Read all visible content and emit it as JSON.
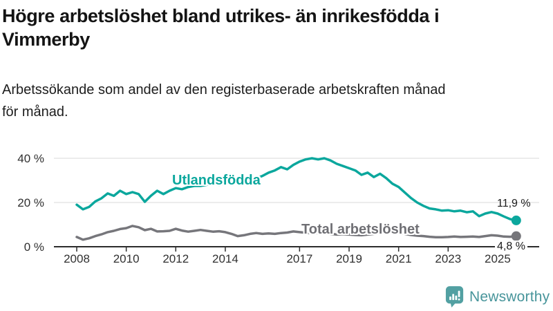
{
  "header": {
    "title_lines": [
      "Högre arbetslöshet bland utrikes- än inrikesfödda i",
      "Vimmerby"
    ],
    "subtitle_lines": [
      "Arbetssökande som andel av den registerbaserade arbetskraften månad",
      "för månad."
    ]
  },
  "chart_data": {
    "type": "line",
    "unit": "%",
    "x_start_year": 2008,
    "x_step_years": 0.25,
    "x_end_year": 2025.75,
    "x_ticks": [
      {
        "label": "2008",
        "year": 2008
      },
      {
        "label": "2010",
        "year": 2010
      },
      {
        "label": "2012",
        "year": 2012
      },
      {
        "label": "2014",
        "year": 2014
      },
      {
        "label": "2017",
        "year": 2017
      },
      {
        "label": "2019",
        "year": 2019
      },
      {
        "label": "2021",
        "year": 2021
      },
      {
        "label": "2023",
        "year": 2023
      },
      {
        "label": "2025",
        "year": 2025
      }
    ],
    "y_ticks": [
      {
        "label": "0 %",
        "value": 0
      },
      {
        "label": "20 %",
        "value": 20
      },
      {
        "label": "40 %",
        "value": 40
      }
    ],
    "ylim": [
      0,
      45
    ],
    "grid": true,
    "series": [
      {
        "name": "Utlandsfödda",
        "color": "#0ba79d",
        "end_value": 11.9,
        "end_label": "11,9 %",
        "values": [
          19.0,
          16.9,
          18.0,
          20.5,
          21.9,
          24.1,
          23.0,
          25.3,
          23.8,
          24.7,
          23.8,
          20.3,
          23.1,
          25.3,
          23.8,
          25.3,
          26.5,
          26.0,
          27.0,
          27.5,
          27.5,
          28.0,
          28.5,
          28.0,
          28.5,
          29.0,
          29.5,
          30.0,
          30.5,
          31.0,
          32.0,
          33.5,
          34.5,
          36.0,
          35.0,
          37.0,
          38.5,
          39.5,
          40.0,
          39.5,
          40.0,
          39.0,
          37.5,
          36.5,
          35.5,
          34.5,
          32.5,
          33.5,
          31.5,
          33.0,
          31.0,
          28.5,
          27.0,
          24.5,
          22.0,
          20.0,
          18.5,
          17.3,
          16.9,
          16.3,
          16.5,
          16.0,
          16.3,
          15.6,
          16.0,
          13.8,
          15.0,
          15.7,
          15.0,
          13.7,
          12.5,
          11.9
        ]
      },
      {
        "name": "Total arbetslöshet",
        "color": "#76767b",
        "end_value": 4.8,
        "end_label": "4,8 %",
        "values": [
          4.4,
          3.2,
          3.8,
          4.8,
          5.6,
          6.6,
          7.2,
          8.0,
          8.4,
          9.4,
          8.8,
          7.5,
          8.1,
          6.9,
          7.0,
          7.2,
          8.1,
          7.3,
          6.8,
          7.2,
          7.6,
          7.2,
          6.8,
          7.0,
          6.6,
          5.8,
          4.8,
          5.2,
          5.8,
          6.2,
          5.8,
          6.0,
          5.8,
          6.2,
          6.4,
          6.9,
          6.6,
          6.3,
          6.0,
          6.2,
          6.0,
          5.8,
          5.5,
          5.7,
          5.5,
          5.3,
          5.2,
          5.5,
          5.8,
          7.0,
          6.8,
          6.5,
          6.2,
          5.8,
          5.3,
          5.0,
          4.8,
          4.5,
          4.3,
          4.3,
          4.4,
          4.6,
          4.4,
          4.5,
          4.6,
          4.4,
          4.8,
          5.2,
          5.0,
          4.6,
          4.5,
          4.8
        ]
      }
    ]
  },
  "footer": {
    "brand": "Newsworthy",
    "brand_color": "#48959b",
    "logo_icon": "newsworthy-speech-bubble-barchart-icon",
    "logo_color": "#52a0a2"
  }
}
